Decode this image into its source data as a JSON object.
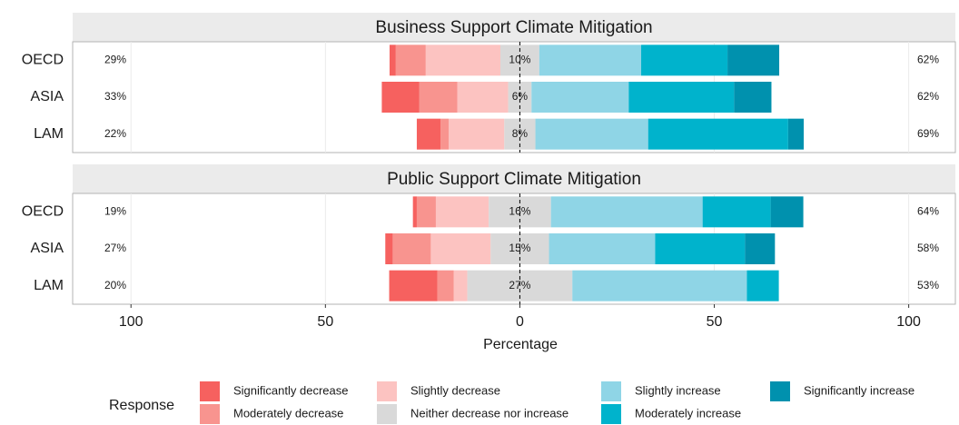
{
  "chart_data": {
    "type": "diverging-bar",
    "x_label": "Percentage",
    "xlim": [
      -115,
      112
    ],
    "xticks": [
      {
        "value": -100,
        "label": "100"
      },
      {
        "value": -50,
        "label": "50"
      },
      0,
      50,
      100
    ],
    "legend_title": "Response",
    "series_names": [
      "Significantly decrease",
      "Moderately decrease",
      "Slightly decrease",
      "Neither decrease nor increase",
      "Slightly increase",
      "Moderately increase",
      "Significantly increase"
    ],
    "colors": [
      "#f6615f",
      "#f8948f",
      "#fcc3c1",
      "#d9d9d9",
      "#8fd5e6",
      "#00b3cc",
      "#0091ae"
    ],
    "panels": [
      {
        "title": "Business Support Climate Mitigation",
        "categories": [
          "OECD",
          "ASIA",
          "LAM"
        ],
        "values": [
          [
            1.6,
            7.7,
            19.2,
            10,
            26.2,
            22.2,
            13.3
          ],
          [
            9.6,
            9.8,
            13.1,
            6,
            25,
            27.1,
            9.6
          ],
          [
            6.1,
            2.1,
            14.3,
            8,
            29,
            36,
            4
          ]
        ],
        "center_labels": [
          "10%",
          "6%",
          "8%"
        ],
        "left_labels": [
          "29%",
          "33%",
          "22%"
        ],
        "right_labels": [
          "62%",
          "62%",
          "69%"
        ]
      },
      {
        "title": "Public Support Climate Mitigation",
        "categories": [
          "OECD",
          "ASIA",
          "LAM"
        ],
        "values": [
          [
            1,
            4.9,
            13.6,
            16,
            39,
            17.5,
            8.4
          ],
          [
            1.9,
            9.8,
            15.4,
            15,
            27.3,
            23.1,
            7.7
          ],
          [
            12.4,
            4.2,
            3.5,
            27,
            44.9,
            8.2,
            0
          ]
        ],
        "center_labels": [
          "16%",
          "15%",
          "27%"
        ],
        "left_labels": [
          "19%",
          "27%",
          "20%"
        ],
        "right_labels": [
          "64%",
          "58%",
          "53%"
        ]
      }
    ]
  }
}
